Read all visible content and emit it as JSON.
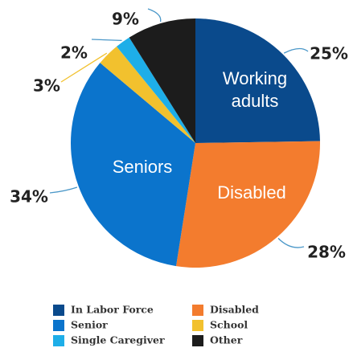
{
  "chart_data": {
    "type": "pie",
    "slices": [
      {
        "label": "In Labor Force",
        "value": 25,
        "display": "25%",
        "inside_label": [
          "Working",
          "adults"
        ],
        "color": "#0a4a8c"
      },
      {
        "label": "Disabled",
        "value": 28,
        "display": "28%",
        "inside_label": [
          "Disabled"
        ],
        "color": "#f37c2e"
      },
      {
        "label": "Senior",
        "value": 34,
        "display": "34%",
        "inside_label": [
          "Seniors"
        ],
        "color": "#0b74cc"
      },
      {
        "label": "School",
        "value": 3,
        "display": "3%",
        "inside_label": [],
        "color": "#f2c12e"
      },
      {
        "label": "Single Caregiver",
        "value": 2,
        "display": "2%",
        "inside_label": [],
        "color": "#1eaee8"
      },
      {
        "label": "Other",
        "value": 9,
        "display": "9%",
        "inside_label": [],
        "color": "#1c1c1c"
      }
    ],
    "start": "12 o'clock",
    "direction": "clockwise",
    "legend": {
      "position": "bottom",
      "columns": 2,
      "order": [
        "In Labor Force",
        "Disabled",
        "Senior",
        "School",
        "Single Caregiver",
        "Other"
      ]
    },
    "title": "",
    "leader_line_color": "#4a97c8"
  }
}
